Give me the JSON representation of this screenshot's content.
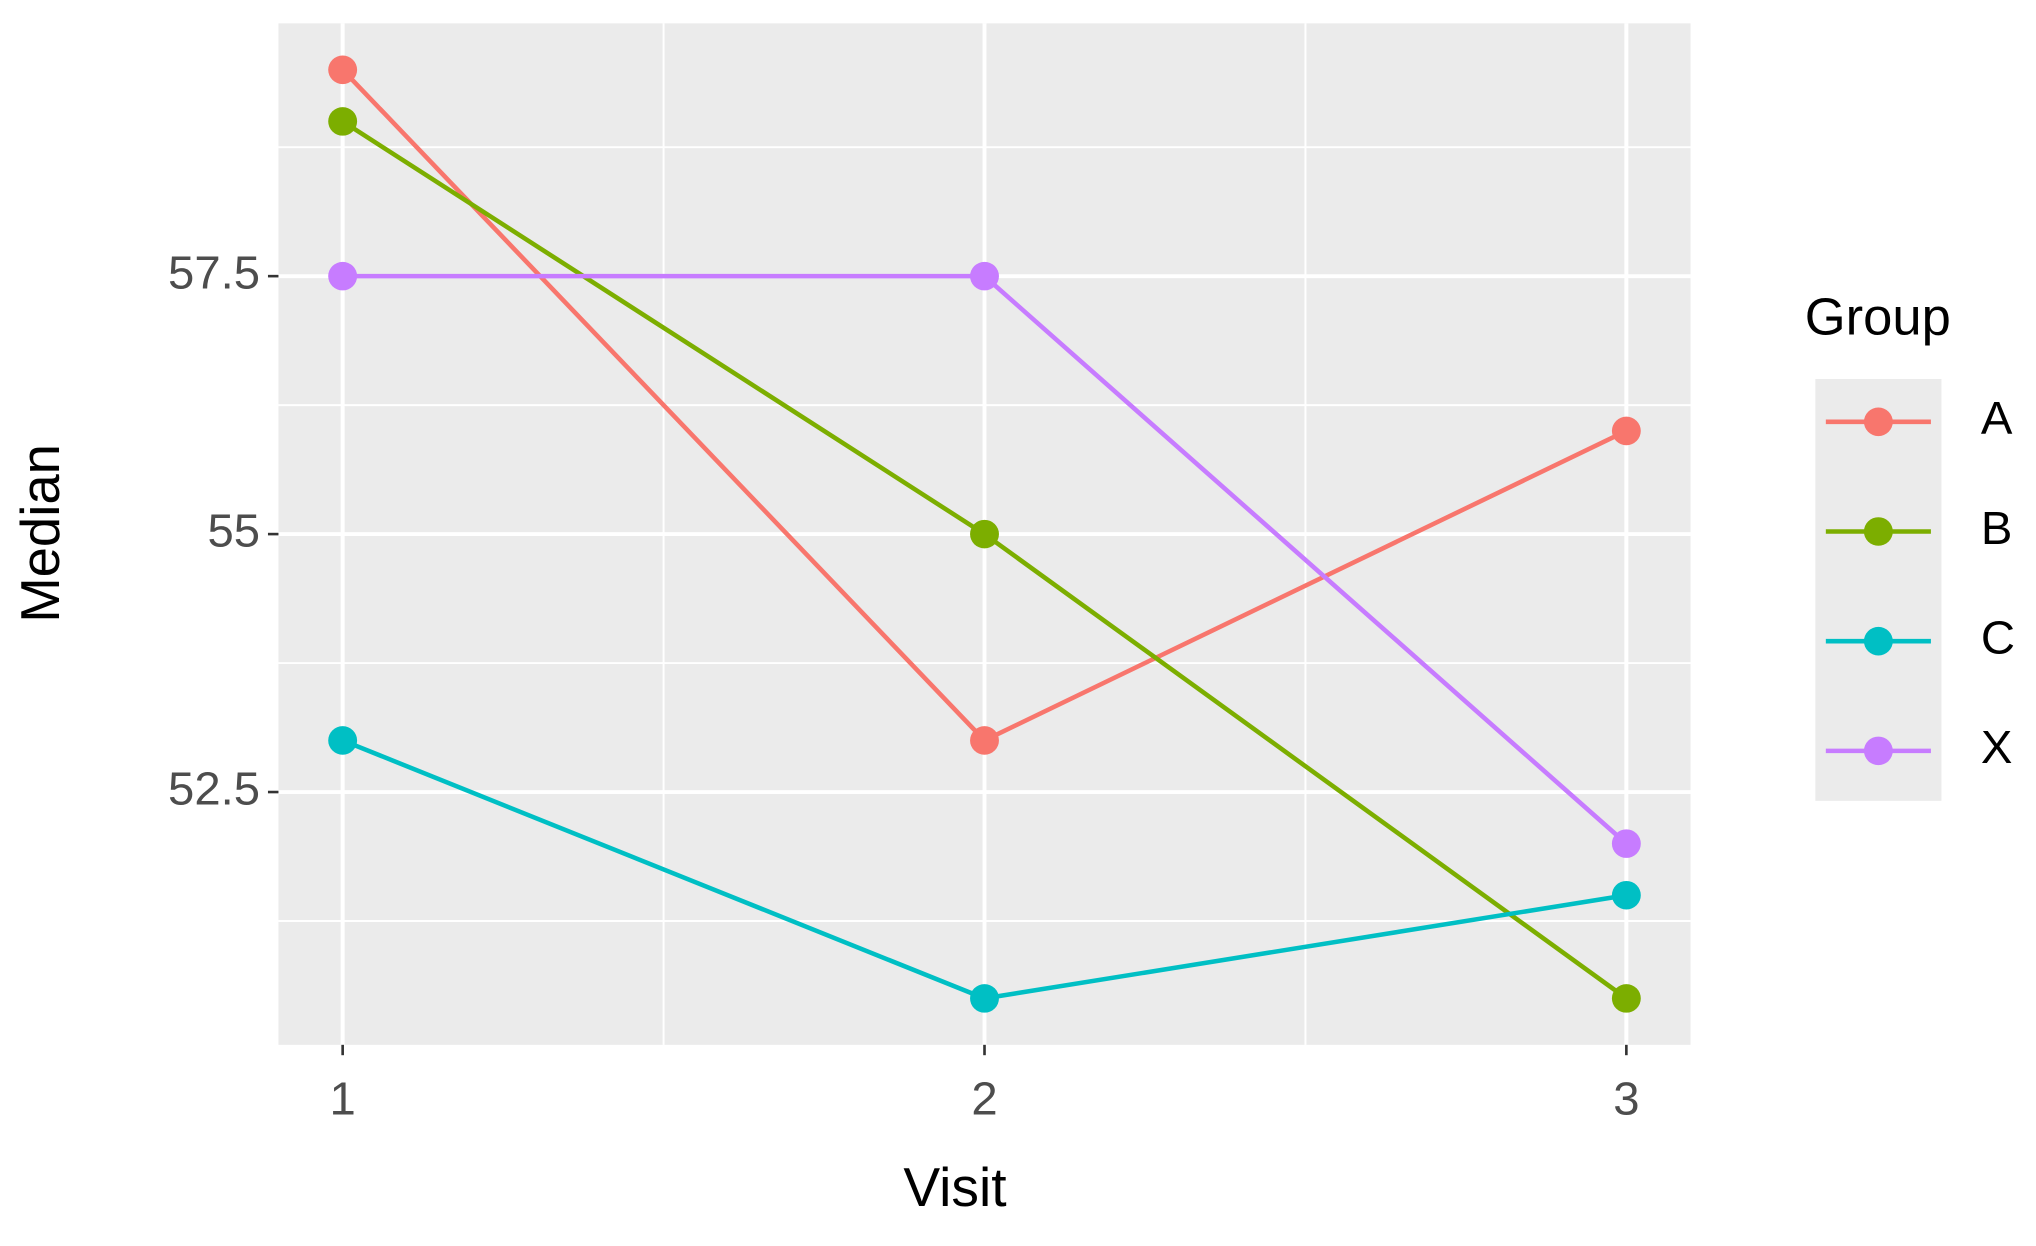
{
  "chart_data": {
    "type": "line",
    "x_label": "Visit",
    "y_label": "Median",
    "x": [
      1,
      2,
      3
    ],
    "xlim": [
      0.9,
      3.1
    ],
    "xticks": [
      1,
      2,
      3
    ],
    "ylim": [
      50.05,
      59.95
    ],
    "yticks": [
      52.5,
      55.0,
      57.5
    ],
    "grid": true,
    "legend_title": "Group",
    "legend_position": "right",
    "series": [
      {
        "name": "A",
        "color": "#F8766D",
        "values": [
          59.5,
          53,
          56
        ]
      },
      {
        "name": "B",
        "color": "#7CAE00",
        "values": [
          59,
          55,
          50.5
        ]
      },
      {
        "name": "C",
        "color": "#00BFC4",
        "values": [
          53,
          50.5,
          51.5
        ]
      },
      {
        "name": "X",
        "color": "#C77CFF",
        "values": [
          57.5,
          57.5,
          52
        ]
      }
    ]
  }
}
